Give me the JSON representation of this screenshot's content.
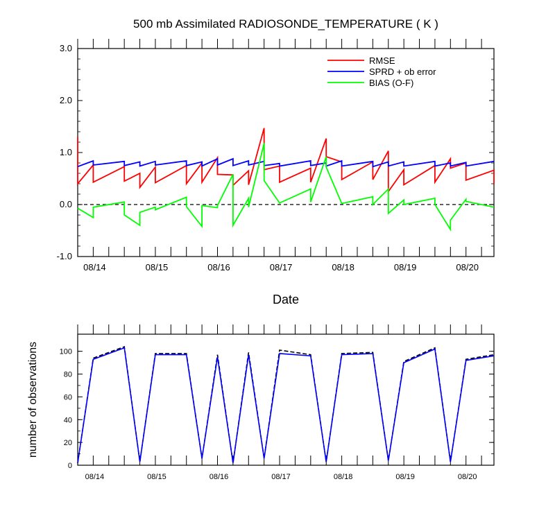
{
  "chart_data": [
    {
      "type": "line",
      "title": "500 mb Assimilated RADIOSONDE_TEMPERATURE ( K )",
      "xlabel": "Date",
      "ylabel": "",
      "ylim": [
        -1.0,
        3.0
      ],
      "xlim": [
        0,
        6.7
      ],
      "yticks": [
        3.0,
        2.0,
        1.0,
        0.0,
        -1.0
      ],
      "ytick_labels": [
        "3.0",
        "2.0",
        "1.0",
        "0.0",
        "-1.0"
      ],
      "xticks": [
        0.25,
        1.25,
        2.25,
        3.25,
        4.25,
        5.25,
        6.25
      ],
      "xtick_labels": [
        "08/14",
        "08/15",
        "08/16",
        "08/17",
        "08/18",
        "08/19",
        "08/20"
      ],
      "zero_line": "dashed",
      "legend_position": "top-right",
      "series": [
        {
          "name": "RMSE",
          "color": "#ff0000",
          "x": [
            0,
            0,
            0.25,
            0.25,
            0.75,
            0.75,
            1.0,
            1.0,
            1.25,
            1.25,
            1.75,
            1.75,
            2.0,
            2.0,
            2.25,
            2.25,
            2.5,
            2.5,
            2.75,
            2.75,
            3.0,
            3.0,
            3.25,
            3.25,
            3.75,
            3.75,
            4.0,
            4.0,
            4.25,
            4.25,
            4.75,
            4.75,
            5.0,
            5.0,
            5.25,
            5.25,
            5.75,
            5.75,
            6.0,
            6.0,
            6.25,
            6.25,
            6.7,
            6.7
          ],
          "y": [
            1.3,
            0.4,
            0.76,
            0.43,
            0.73,
            0.45,
            0.6,
            0.33,
            0.72,
            0.42,
            0.75,
            0.4,
            0.8,
            0.43,
            0.9,
            0.58,
            0.57,
            0.37,
            0.65,
            0.38,
            1.47,
            0.67,
            0.74,
            0.43,
            0.7,
            0.43,
            1.27,
            0.92,
            0.82,
            0.48,
            0.82,
            0.48,
            1.03,
            0.25,
            0.67,
            0.38,
            0.75,
            0.43,
            0.88,
            0.7,
            0.8,
            0.47,
            0.66,
            0.4
          ]
        },
        {
          "name": "SPRD + ob error",
          "color": "#0000ff",
          "x": [
            0,
            0.25,
            0.25,
            0.75,
            0.75,
            1.0,
            1.0,
            1.25,
            1.25,
            1.75,
            1.75,
            2.0,
            2.0,
            2.25,
            2.25,
            2.5,
            2.5,
            2.75,
            2.75,
            3.0,
            3.0,
            3.25,
            3.25,
            3.75,
            3.75,
            4.0,
            4.0,
            4.25,
            4.25,
            4.75,
            4.75,
            5.0,
            5.0,
            5.25,
            5.25,
            5.75,
            5.75,
            6.0,
            6.0,
            6.25,
            6.25,
            6.7
          ],
          "y": [
            0.73,
            0.84,
            0.76,
            0.83,
            0.75,
            0.82,
            0.74,
            0.83,
            0.76,
            0.84,
            0.75,
            0.82,
            0.74,
            0.88,
            0.76,
            0.88,
            0.75,
            0.84,
            0.76,
            0.83,
            0.75,
            0.79,
            0.74,
            0.84,
            0.75,
            0.8,
            0.74,
            0.84,
            0.74,
            0.83,
            0.73,
            0.82,
            0.74,
            0.82,
            0.74,
            0.83,
            0.74,
            0.8,
            0.74,
            0.81,
            0.74,
            0.83
          ]
        },
        {
          "name": "BIAS (O-F)",
          "color": "#00ff00",
          "x": [
            0,
            0.25,
            0.25,
            0.75,
            0.75,
            1.0,
            1.0,
            1.25,
            1.25,
            1.75,
            1.75,
            2.0,
            2.0,
            2.25,
            2.25,
            2.5,
            2.5,
            2.75,
            2.75,
            3.0,
            3.0,
            3.25,
            3.25,
            3.75,
            3.75,
            4.0,
            4.0,
            4.25,
            4.25,
            4.75,
            4.75,
            5.0,
            5.0,
            5.25,
            5.25,
            5.75,
            5.75,
            6.0,
            6.0,
            6.25,
            6.25,
            6.7
          ],
          "y": [
            -0.07,
            -0.25,
            -0.05,
            0.05,
            -0.2,
            -0.4,
            -0.15,
            -0.05,
            -0.1,
            0.14,
            -0.04,
            -0.42,
            -0.02,
            -0.06,
            -0.02,
            0.58,
            -0.4,
            0.12,
            -0.05,
            1.18,
            0.46,
            0.03,
            0.03,
            0.3,
            0.05,
            0.92,
            0.72,
            0.02,
            0.02,
            0.15,
            0.0,
            0.3,
            -0.17,
            0.09,
            0.0,
            0.12,
            0.0,
            -0.48,
            -0.3,
            0.1,
            0.06,
            -0.05
          ]
        }
      ]
    },
    {
      "type": "line",
      "title": "",
      "xlabel": "",
      "ylabel": "number of observations",
      "ylim": [
        0,
        115
      ],
      "xlim": [
        0,
        6.7
      ],
      "yticks": [
        0,
        20,
        40,
        60,
        80,
        100
      ],
      "ytick_labels": [
        "0",
        "20",
        "40",
        "60",
        "80",
        "100"
      ],
      "xticks": [
        0.25,
        1.25,
        2.25,
        3.25,
        4.25,
        5.25,
        6.25
      ],
      "xtick_labels": [
        "08/14",
        "08/15",
        "08/16",
        "08/17",
        "08/18",
        "08/19",
        "08/20"
      ],
      "series": [
        {
          "name": "dashed",
          "color": "#000000",
          "style": "dashed",
          "x": [
            0,
            0.25,
            0.75,
            1.0,
            1.25,
            1.75,
            2.0,
            2.25,
            2.5,
            2.75,
            3.0,
            3.25,
            3.75,
            4.0,
            4.25,
            4.75,
            5.0,
            5.25,
            5.75,
            6.0,
            6.25,
            6.7
          ],
          "y": [
            2,
            94,
            104,
            3,
            98,
            98,
            6,
            97,
            2,
            99,
            6,
            101,
            97,
            3,
            98,
            99,
            4,
            91,
            103,
            3,
            93,
            97
          ]
        },
        {
          "name": "solid",
          "color": "#0000ff",
          "style": "solid",
          "x": [
            0,
            0.25,
            0.75,
            1.0,
            1.25,
            1.75,
            2.0,
            2.25,
            2.5,
            2.75,
            3.0,
            3.25,
            3.75,
            4.0,
            4.25,
            4.75,
            5.0,
            5.25,
            5.75,
            6.0,
            6.25,
            6.7
          ],
          "y": [
            2,
            93,
            103,
            3,
            97,
            97,
            6,
            95,
            2,
            97,
            6,
            98,
            96,
            3,
            97,
            98,
            4,
            90,
            102,
            3,
            92,
            96
          ]
        }
      ]
    }
  ]
}
